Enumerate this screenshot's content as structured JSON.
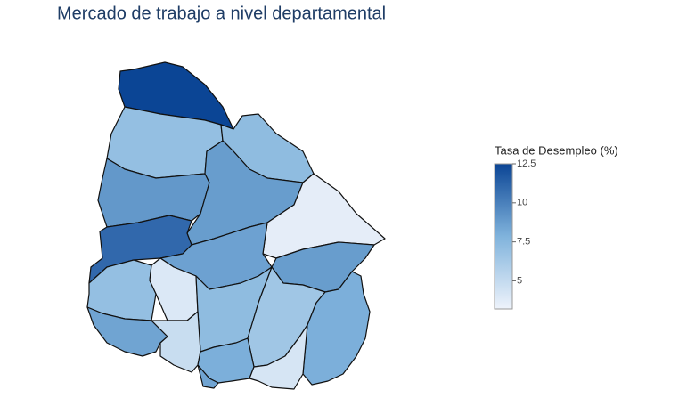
{
  "chart_data": {
    "type": "choropleth",
    "title": "Mercado de trabajo a nivel departamental",
    "colorbar_title": "Tasa de Desempleo (%)",
    "values": [
      12.5,
      7,
      7.2,
      9,
      8.8,
      3.6,
      11,
      8.6,
      8.8,
      7,
      4,
      7.2,
      6.5,
      8,
      8.5,
      4.8,
      8,
      4.2,
      8.5
    ],
    "clim": [
      3.2,
      12.5
    ],
    "cticks": [
      5,
      7.5,
      10,
      12.5
    ],
    "colorscale": [
      "#eef3fb",
      "#80b3dc",
      "#0b4595"
    ]
  }
}
